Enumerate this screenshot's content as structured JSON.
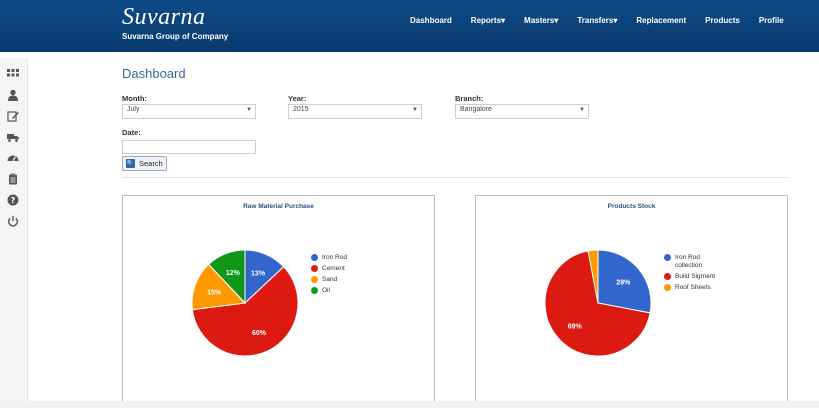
{
  "header": {
    "brand_name": "Suvarna",
    "brand_subtitle": "Suvarna Group of Company",
    "nav": [
      {
        "label": "Dashboard"
      },
      {
        "label": "Reports▾"
      },
      {
        "label": "Masters▾"
      },
      {
        "label": "Transfers▾"
      },
      {
        "label": "Replacement"
      },
      {
        "label": "Products"
      },
      {
        "label": "Profile"
      }
    ]
  },
  "sidebar": {
    "icons": [
      "grid-icon",
      "user-icon",
      "edit-icon",
      "truck-icon",
      "dashboard-gauge-icon",
      "clipboard-icon",
      "help-icon",
      "power-icon"
    ]
  },
  "page": {
    "title": "Dashboard"
  },
  "filters": {
    "month_label": "Month:",
    "month_value": "July",
    "year_label": "Year:",
    "year_value": "2015",
    "branch_label": "Branch:",
    "branch_value": "Bangalore",
    "date_label": "Date:",
    "date_value": "",
    "search_label": "Search"
  },
  "chart_data": [
    {
      "type": "pie",
      "title": "Raw Material Purchase",
      "categories": [
        "Iron Rod",
        "Cement",
        "Sand",
        "Oil"
      ],
      "values": [
        13,
        60,
        15,
        12
      ],
      "labels": [
        "13%",
        "60%",
        "15%",
        "12%"
      ],
      "colors": [
        "#3366cc",
        "#dc1a12",
        "#ff9900",
        "#109618"
      ],
      "legend": "right"
    },
    {
      "type": "pie",
      "title": "Products Stock",
      "categories": [
        "Iron Rod collection",
        "Build Sigment",
        "Roof Sheets"
      ],
      "values": [
        28,
        69,
        3
      ],
      "labels": [
        "28%",
        "69%",
        ""
      ],
      "colors": [
        "#3366cc",
        "#dc1a12",
        "#ff9900"
      ],
      "legend": "right"
    }
  ]
}
